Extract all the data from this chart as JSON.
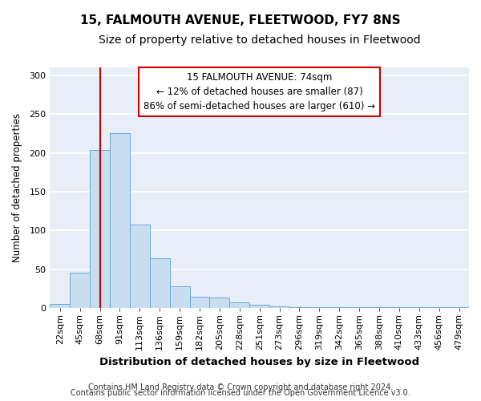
{
  "title": "15, FALMOUTH AVENUE, FLEETWOOD, FY7 8NS",
  "subtitle": "Size of property relative to detached houses in Fleetwood",
  "xlabel": "Distribution of detached houses by size in Fleetwood",
  "ylabel": "Number of detached properties",
  "bar_color": "#c9ddf0",
  "bar_edge_color": "#6aaad4",
  "bar_values": [
    5,
    46,
    204,
    225,
    108,
    64,
    28,
    15,
    14,
    7,
    4,
    2,
    1,
    1,
    1,
    1,
    1,
    1,
    1,
    1,
    1
  ],
  "x_labels": [
    "22sqm",
    "45sqm",
    "68sqm",
    "91sqm",
    "113sqm",
    "136sqm",
    "159sqm",
    "182sqm",
    "205sqm",
    "228sqm",
    "251sqm",
    "273sqm",
    "296sqm",
    "319sqm",
    "342sqm",
    "365sqm",
    "388sqm",
    "410sqm",
    "433sqm",
    "456sqm",
    "479sqm"
  ],
  "property_label": "15 FALMOUTH AVENUE: 74sqm",
  "annotation_line1": "← 12% of detached houses are smaller (87)",
  "annotation_line2": "86% of semi-detached houses are larger (610) →",
  "vline_x": 2.0,
  "ylim": [
    0,
    310
  ],
  "yticks": [
    0,
    50,
    100,
    150,
    200,
    250,
    300
  ],
  "plot_bg_color": "#e8eef8",
  "fig_bg_color": "#ffffff",
  "grid_color": "#ffffff",
  "annotation_box_facecolor": "#ffffff",
  "annotation_box_edgecolor": "#cc0000",
  "vline_color": "#cc0000",
  "footer_line1": "Contains HM Land Registry data © Crown copyright and database right 2024.",
  "footer_line2": "Contains public sector information licensed under the Open Government Licence v3.0.",
  "title_fontsize": 11,
  "subtitle_fontsize": 10,
  "xlabel_fontsize": 9.5,
  "ylabel_fontsize": 8.5,
  "tick_fontsize": 8,
  "annotation_fontsize": 8.5,
  "footer_fontsize": 7
}
